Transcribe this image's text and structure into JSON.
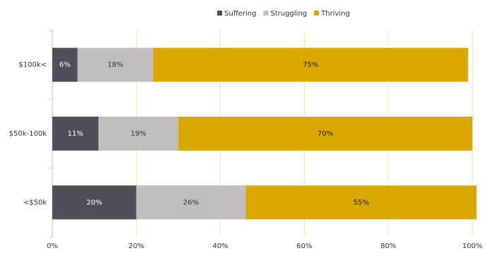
{
  "chart_data": {
    "type": "stacked-bar-horizontal",
    "categories": [
      "$100k<",
      "$50k-100k",
      "<$50k"
    ],
    "series": [
      {
        "name": "Suffering",
        "color": "#4d5058",
        "label_color": "#ffffff",
        "values": [
          6,
          11,
          20
        ],
        "value_labels": [
          "6%",
          "11%",
          "20%"
        ]
      },
      {
        "name": "Struggling",
        "color": "#c2bebf",
        "label_color": "#333333",
        "values": [
          18,
          19,
          26
        ],
        "value_labels": [
          "18%",
          "19%",
          "26%"
        ]
      },
      {
        "name": "Thriving",
        "color": "#d9a900",
        "label_color": "#222222",
        "values": [
          75,
          70,
          55
        ],
        "value_labels": [
          "75%",
          "70%",
          "55%"
        ]
      }
    ],
    "xlim": [
      0,
      100
    ],
    "xticks": [
      {
        "value": 0,
        "label": "0%"
      },
      {
        "value": 20,
        "label": "20%"
      },
      {
        "value": 40,
        "label": "40%"
      },
      {
        "value": 60,
        "label": "60%"
      },
      {
        "value": 80,
        "label": "80%"
      },
      {
        "value": 100,
        "label": "100%"
      }
    ],
    "grid": true,
    "grid_color": "#f5e3a8",
    "legend": "top"
  }
}
